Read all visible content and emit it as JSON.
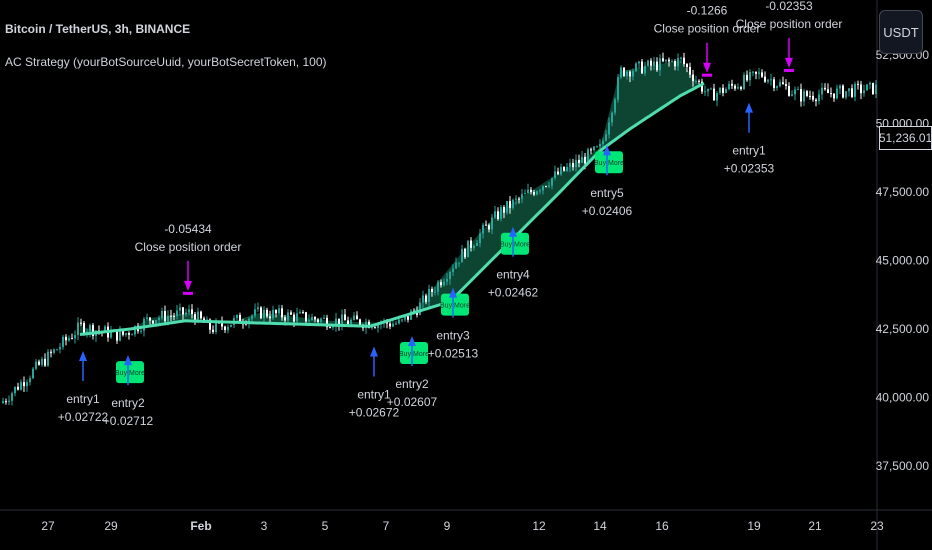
{
  "header": {
    "symbol": "Bitcoin / TetherUS, 3h, BINANCE",
    "strategy": "AC Strategy (yourBotSourceUuid, yourBotSecretToken, 100)"
  },
  "currency_button": "USDT",
  "last_price": "51,236.01",
  "colors": {
    "up": "#26a69a",
    "down": "#ffffff",
    "ma": "#4fdcae",
    "fill": "#0f4b37",
    "entry_arrow": "#2962ff",
    "close_marker": "#d500f9",
    "buy_more_bg": "#00e676",
    "axis_text": "#d1d4dc"
  },
  "chart_data": {
    "type": "candlestick",
    "title": "Bitcoin / TetherUS, 3h, BINANCE",
    "x_ticks": [
      "27",
      "29",
      "Feb",
      "3",
      "5",
      "7",
      "9",
      "12",
      "14",
      "16",
      "19",
      "21",
      "23"
    ],
    "y_ticks": [
      "52,500.00",
      "50,000.00",
      "47,500.00",
      "45,000.00",
      "42,500.00",
      "40,000.00",
      "37,500.00"
    ],
    "ylim": [
      35900,
      54500
    ],
    "price_path": [
      [
        0,
        39800
      ],
      [
        30,
        40900
      ],
      [
        80,
        42600
      ],
      [
        120,
        42250
      ],
      [
        150,
        42900
      ],
      [
        190,
        43100
      ],
      [
        210,
        42500
      ],
      [
        260,
        43100
      ],
      [
        330,
        42800
      ],
      [
        400,
        42700
      ],
      [
        420,
        43400
      ],
      [
        460,
        45200
      ],
      [
        500,
        46800
      ],
      [
        555,
        48100
      ],
      [
        600,
        49100
      ],
      [
        620,
        51900
      ],
      [
        680,
        52300
      ],
      [
        708,
        51000
      ],
      [
        760,
        51800
      ],
      [
        800,
        51000
      ],
      [
        880,
        51300
      ]
    ],
    "ma_path": [
      [
        80,
        42300
      ],
      [
        130,
        42500
      ],
      [
        185,
        42800
      ],
      [
        370,
        42600
      ],
      [
        450,
        43500
      ],
      [
        560,
        47500
      ],
      [
        600,
        49000
      ],
      [
        630,
        49800
      ],
      [
        680,
        51000
      ],
      [
        706,
        51500
      ]
    ],
    "entries": [
      {
        "label": "entry1",
        "value": "+0.02722",
        "x": 83,
        "kind": "entry"
      },
      {
        "label": "entry2",
        "value": "+0.02712",
        "x": 128,
        "kind": "buy_more"
      },
      {
        "label": "entry1",
        "value": "+0.02672",
        "x": 374,
        "kind": "entry"
      },
      {
        "label": "entry2",
        "value": "+0.02607",
        "x": 412,
        "kind": "buy_more"
      },
      {
        "label": "entry3",
        "value": "+0.02513",
        "x": 453,
        "kind": "buy_more"
      },
      {
        "label": "entry4",
        "value": "+0.02462",
        "x": 513,
        "kind": "buy_more"
      },
      {
        "label": "entry5",
        "value": "+0.02406",
        "x": 607,
        "kind": "buy_more"
      },
      {
        "label": "entry1",
        "value": "+0.02353",
        "x": 749,
        "kind": "entry"
      }
    ],
    "closes": [
      {
        "value": "-0.05434",
        "label": "Close position order",
        "x": 188
      },
      {
        "value": "-0.1266",
        "label": "Close position order",
        "x": 707
      },
      {
        "value": "-0.02353",
        "label": "Close position order",
        "x": 789
      }
    ],
    "buy_more_label": "Buy More"
  }
}
